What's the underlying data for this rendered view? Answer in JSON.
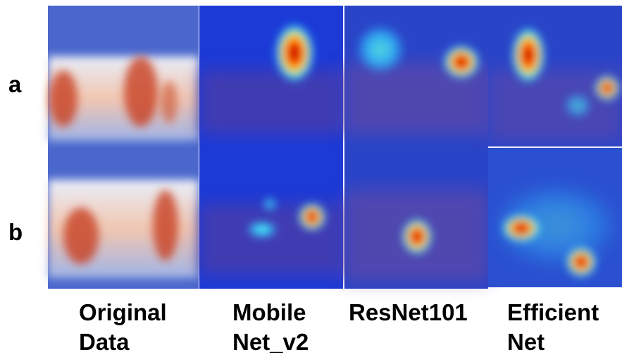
{
  "rows": [
    "a",
    "b"
  ],
  "columns": [
    [
      "Original",
      "Data"
    ],
    [
      "Mobile",
      "Net_v2"
    ],
    [
      "ResNet101"
    ],
    [
      "Efficient",
      "Net"
    ]
  ]
}
